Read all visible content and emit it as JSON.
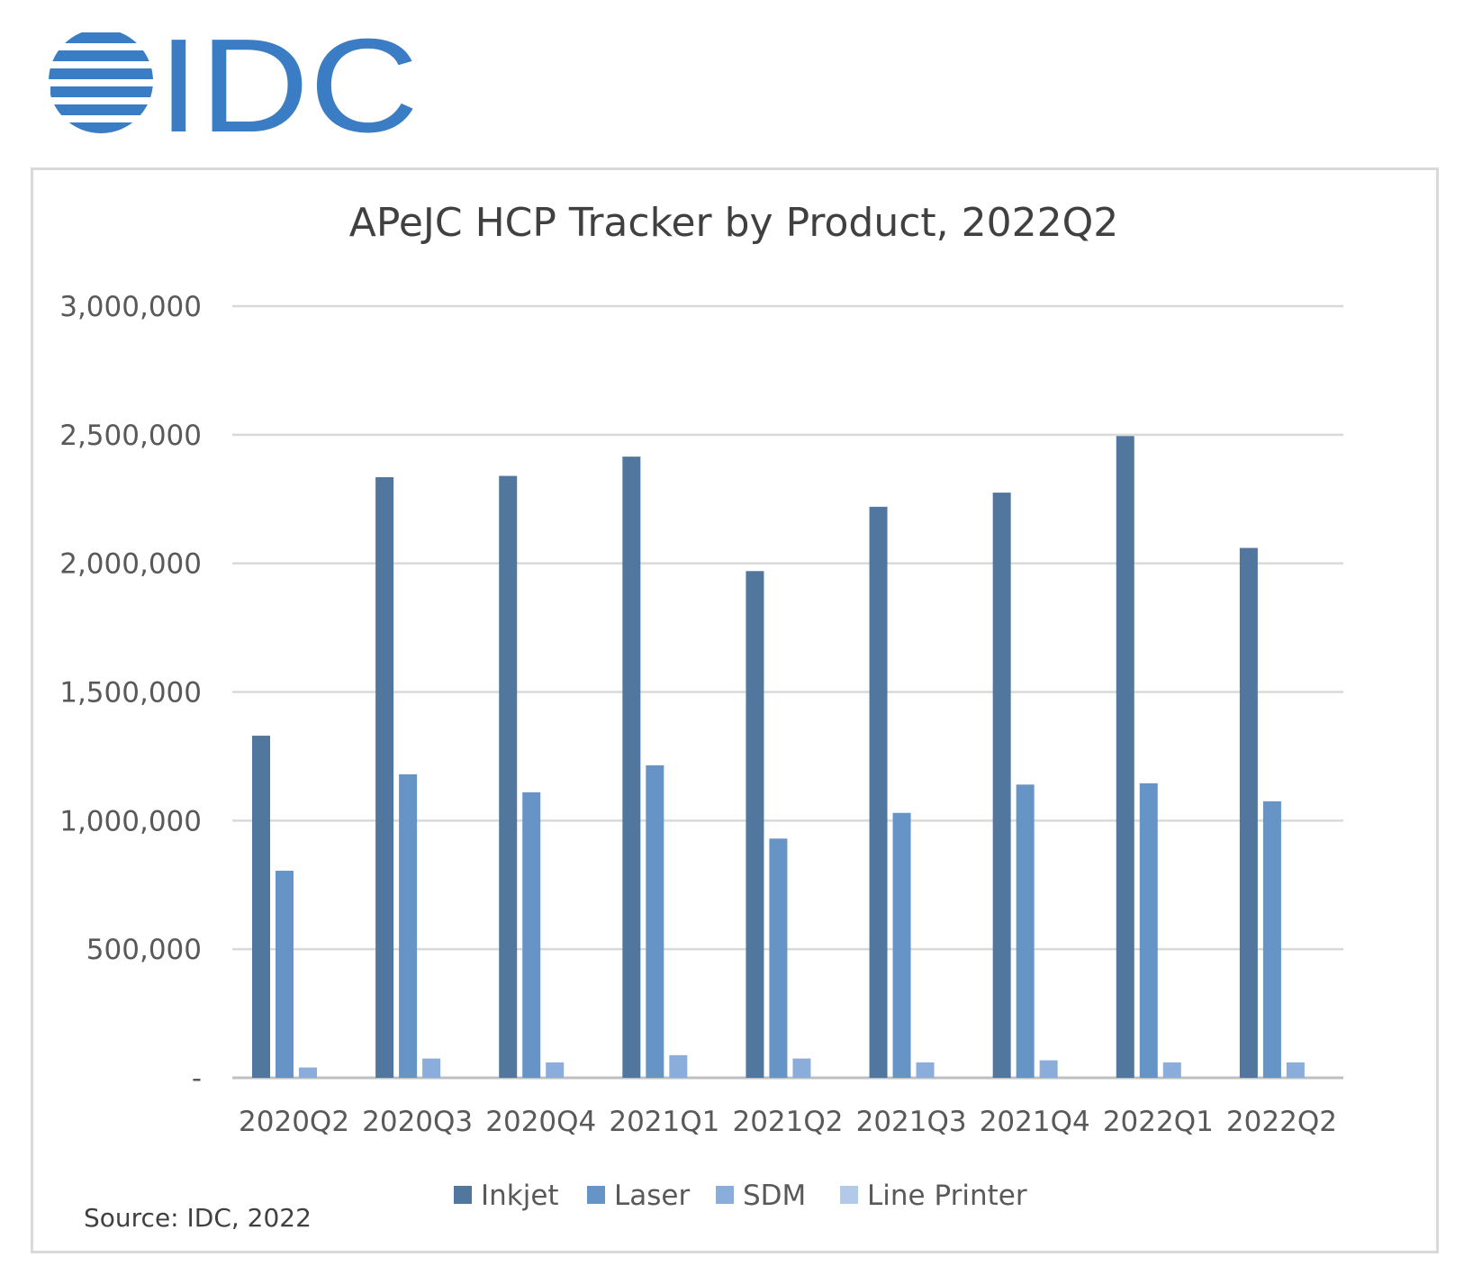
{
  "logo": {
    "text": "IDC",
    "color": "#3b7dc4"
  },
  "source": "Source: IDC, 2022",
  "colors": {
    "Inkjet": "#52779f",
    "Laser": "#6694c6",
    "SDM": "#8aaddb",
    "Line Printer": "#b3c9ea",
    "grid": "#d9d9d9",
    "axis": "#bfbfbf"
  },
  "chart_data": {
    "type": "bar",
    "title": "APeJC HCP Tracker by Product, 2022Q2",
    "xlabel": "",
    "ylabel": "",
    "ylim": [
      0,
      3000000
    ],
    "ytick_values": [
      0,
      500000,
      1000000,
      1500000,
      2000000,
      2500000,
      3000000
    ],
    "ytick_labels": [
      "-",
      "500,000",
      "1,000,000",
      "1,500,000",
      "2,000,000",
      "2,500,000",
      "3,000,000"
    ],
    "grid": true,
    "legend_position": "bottom",
    "categories": [
      "2020Q2",
      "2020Q3",
      "2020Q4",
      "2021Q1",
      "2021Q2",
      "2021Q3",
      "2021Q4",
      "2022Q1",
      "2022Q2"
    ],
    "series": [
      {
        "name": "Inkjet",
        "values": [
          1330000,
          2335000,
          2340000,
          2415000,
          1970000,
          2220000,
          2275000,
          2495000,
          2060000
        ]
      },
      {
        "name": "Laser",
        "values": [
          805000,
          1180000,
          1110000,
          1215000,
          930000,
          1030000,
          1140000,
          1145000,
          1075000
        ]
      },
      {
        "name": "SDM",
        "values": [
          40000,
          75000,
          60000,
          88000,
          75000,
          60000,
          68000,
          60000,
          60000
        ]
      },
      {
        "name": "Line Printer",
        "values": [
          0,
          0,
          0,
          0,
          0,
          0,
          0,
          0,
          0
        ]
      }
    ]
  }
}
